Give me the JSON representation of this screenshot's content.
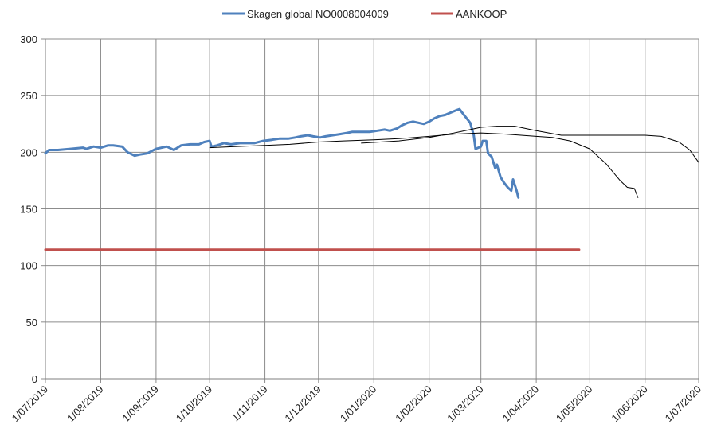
{
  "chart_data": {
    "type": "line",
    "title": "",
    "xlabel": "",
    "ylabel": "",
    "ylim": [
      0,
      300
    ],
    "yticks": [
      0,
      50,
      100,
      150,
      200,
      250,
      300
    ],
    "xlim": [
      "2019-07-01",
      "2020-07-01"
    ],
    "xticks": [
      "1/07/2019",
      "1/08/2019",
      "1/09/2019",
      "1/10/2019",
      "1/11/2019",
      "1/12/2019",
      "1/01/2020",
      "1/02/2020",
      "1/03/2020",
      "1/04/2020",
      "1/05/2020",
      "1/06/2020",
      "1/07/2020"
    ],
    "grid": true,
    "legend_position": "top",
    "series": [
      {
        "name": "Skagen global   NO0008004009",
        "color": "#4F81BD",
        "points": [
          [
            "2019-07-01",
            199
          ],
          [
            "2019-07-03",
            202
          ],
          [
            "2019-07-08",
            202
          ],
          [
            "2019-07-15",
            203
          ],
          [
            "2019-07-22",
            204
          ],
          [
            "2019-07-24",
            203
          ],
          [
            "2019-07-28",
            205
          ],
          [
            "2019-08-01",
            204
          ],
          [
            "2019-08-05",
            206
          ],
          [
            "2019-08-08",
            206
          ],
          [
            "2019-08-13",
            205
          ],
          [
            "2019-08-16",
            200
          ],
          [
            "2019-08-20",
            197
          ],
          [
            "2019-08-23",
            198
          ],
          [
            "2019-08-27",
            199
          ],
          [
            "2019-09-01",
            203
          ],
          [
            "2019-09-07",
            205
          ],
          [
            "2019-09-11",
            202
          ],
          [
            "2019-09-15",
            206
          ],
          [
            "2019-09-20",
            207
          ],
          [
            "2019-09-25",
            207
          ],
          [
            "2019-09-28",
            209
          ],
          [
            "2019-10-01",
            210
          ],
          [
            "2019-10-02",
            205
          ],
          [
            "2019-10-05",
            206
          ],
          [
            "2019-10-09",
            208
          ],
          [
            "2019-10-13",
            207
          ],
          [
            "2019-10-18",
            208
          ],
          [
            "2019-10-22",
            208
          ],
          [
            "2019-10-26",
            208
          ],
          [
            "2019-10-31",
            210
          ],
          [
            "2019-11-05",
            211
          ],
          [
            "2019-11-09",
            212
          ],
          [
            "2019-11-14",
            212
          ],
          [
            "2019-11-18",
            213
          ],
          [
            "2019-11-21",
            214
          ],
          [
            "2019-11-25",
            215
          ],
          [
            "2019-11-28",
            214
          ],
          [
            "2019-12-02",
            213
          ],
          [
            "2019-12-05",
            214
          ],
          [
            "2019-12-09",
            215
          ],
          [
            "2019-12-13",
            216
          ],
          [
            "2019-12-17",
            217
          ],
          [
            "2019-12-20",
            218
          ],
          [
            "2019-12-26",
            218
          ],
          [
            "2019-12-30",
            218
          ],
          [
            "2020-01-03",
            219
          ],
          [
            "2020-01-07",
            220
          ],
          [
            "2020-01-10",
            219
          ],
          [
            "2020-01-14",
            221
          ],
          [
            "2020-01-17",
            224
          ],
          [
            "2020-01-20",
            226
          ],
          [
            "2020-01-23",
            227
          ],
          [
            "2020-01-26",
            226
          ],
          [
            "2020-01-29",
            225
          ],
          [
            "2020-02-01",
            227
          ],
          [
            "2020-02-04",
            230
          ],
          [
            "2020-02-07",
            232
          ],
          [
            "2020-02-10",
            233
          ],
          [
            "2020-02-13",
            235
          ],
          [
            "2020-02-16",
            237
          ],
          [
            "2020-02-18",
            238
          ],
          [
            "2020-02-21",
            232
          ],
          [
            "2020-02-24",
            226
          ],
          [
            "2020-02-26",
            215
          ],
          [
            "2020-02-27",
            203
          ],
          [
            "2020-03-01",
            205
          ],
          [
            "2020-03-02",
            210
          ],
          [
            "2020-03-04",
            210
          ],
          [
            "2020-03-05",
            199
          ],
          [
            "2020-03-07",
            196
          ],
          [
            "2020-03-09",
            186
          ],
          [
            "2020-03-10",
            189
          ],
          [
            "2020-03-12",
            178
          ],
          [
            "2020-03-14",
            173
          ],
          [
            "2020-03-16",
            169
          ],
          [
            "2020-03-18",
            166
          ],
          [
            "2020-03-19",
            176
          ],
          [
            "2020-03-21",
            166
          ],
          [
            "2020-03-22",
            160
          ]
        ]
      },
      {
        "name": "AANKOOP",
        "color": "#C0504D",
        "points": [
          [
            "2019-07-01",
            114
          ],
          [
            "2020-04-25",
            114
          ]
        ]
      },
      {
        "name": "",
        "color": "#000000",
        "points": [
          [
            "2019-10-01",
            204
          ],
          [
            "2019-10-15",
            205
          ],
          [
            "2019-11-01",
            206
          ],
          [
            "2019-11-15",
            207
          ],
          [
            "2019-12-01",
            209
          ],
          [
            "2019-12-15",
            210
          ],
          [
            "2020-01-01",
            211
          ],
          [
            "2020-01-15",
            212
          ],
          [
            "2020-02-01",
            214
          ],
          [
            "2020-02-15",
            216
          ],
          [
            "2020-03-01",
            217
          ],
          [
            "2020-03-15",
            216
          ],
          [
            "2020-04-01",
            214
          ],
          [
            "2020-04-10",
            213
          ],
          [
            "2020-04-20",
            210
          ],
          [
            "2020-05-01",
            203
          ],
          [
            "2020-05-10",
            190
          ],
          [
            "2020-05-18",
            175
          ],
          [
            "2020-05-22",
            169
          ],
          [
            "2020-05-26",
            168
          ],
          [
            "2020-05-28",
            160
          ]
        ]
      },
      {
        "name": "",
        "color": "#000000",
        "points": [
          [
            "2019-12-25",
            208
          ],
          [
            "2020-01-15",
            210
          ],
          [
            "2020-02-01",
            213
          ],
          [
            "2020-02-15",
            217
          ],
          [
            "2020-03-01",
            222
          ],
          [
            "2020-03-10",
            223
          ],
          [
            "2020-03-20",
            223
          ],
          [
            "2020-04-01",
            219
          ],
          [
            "2020-04-15",
            215
          ],
          [
            "2020-05-01",
            215
          ],
          [
            "2020-05-20",
            215
          ],
          [
            "2020-06-01",
            215
          ],
          [
            "2020-06-10",
            214
          ],
          [
            "2020-06-20",
            209
          ],
          [
            "2020-06-26",
            202
          ],
          [
            "2020-07-01",
            191
          ]
        ]
      }
    ]
  }
}
